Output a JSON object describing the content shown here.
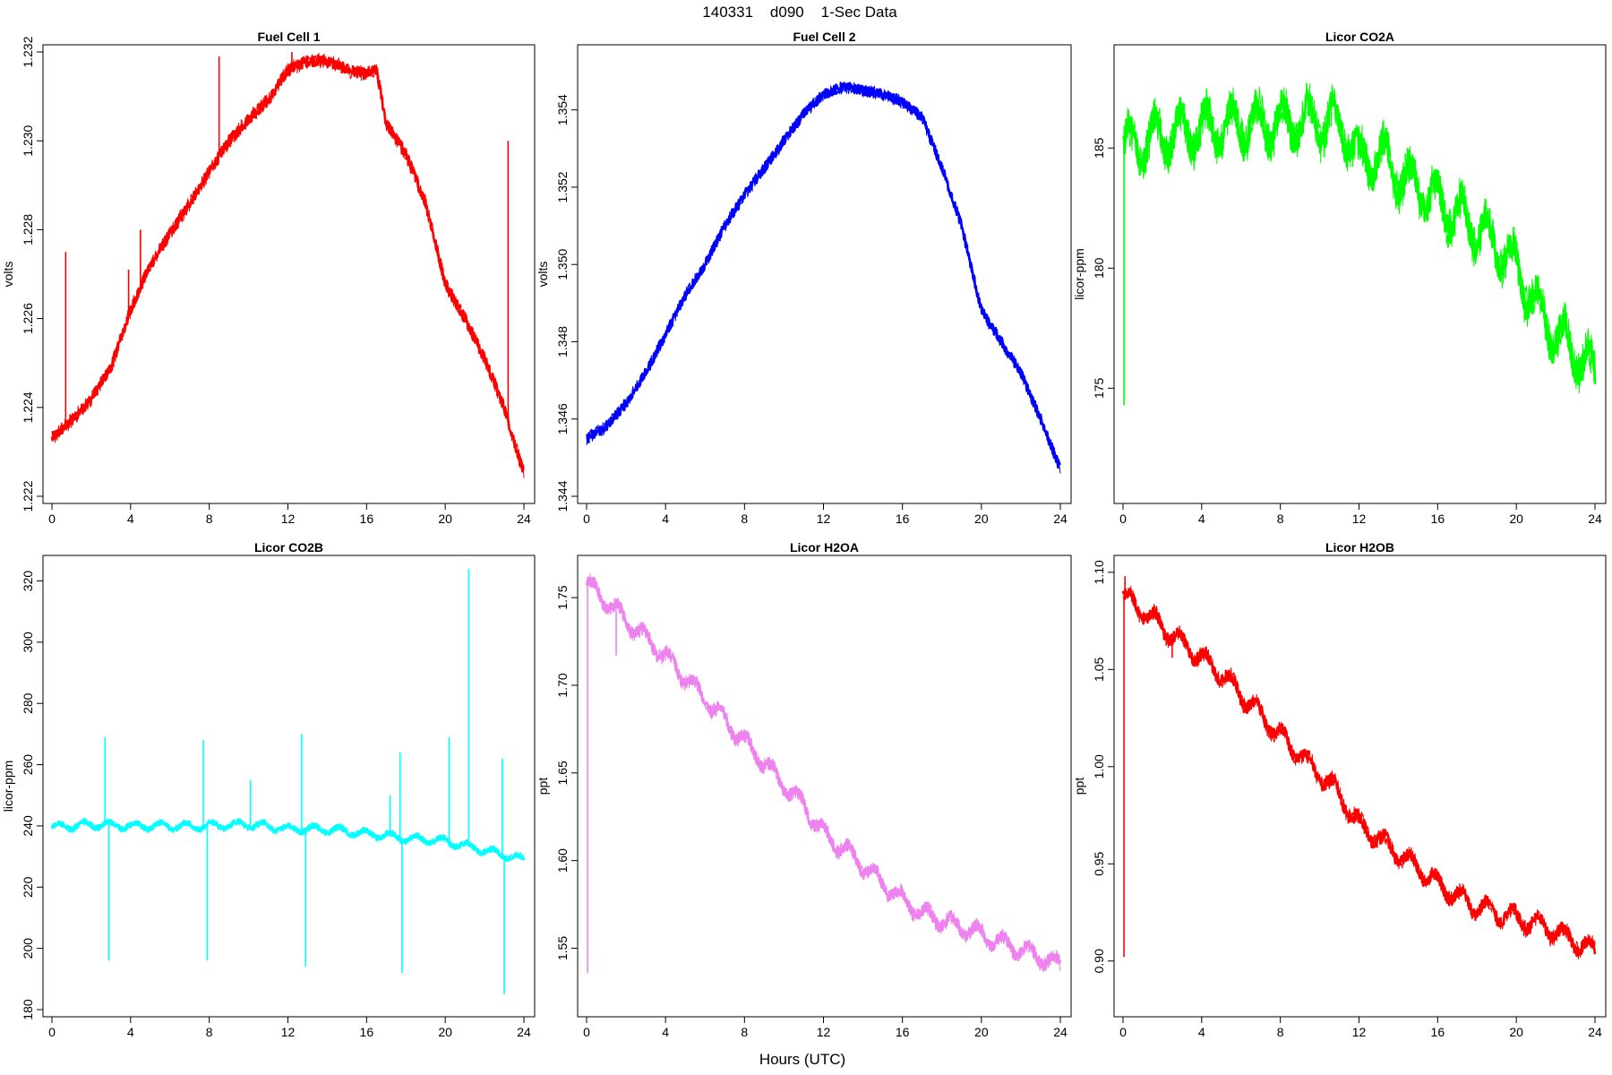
{
  "figure": {
    "title": "140331    d090    1-Sec Data",
    "xlabel": "Hours (UTC)"
  },
  "chart_data": [
    {
      "type": "line",
      "title": "Fuel Cell 1",
      "ylabel": "volts",
      "color": "#ff0000",
      "xlim": [
        0,
        24
      ],
      "ylim": [
        1.222,
        1.232
      ],
      "xticks": [
        0,
        4,
        8,
        12,
        16,
        20,
        24
      ],
      "yticks": [
        "1.222",
        "1.224",
        "1.226",
        "1.228",
        "1.230",
        "1.232"
      ],
      "noise": 0.00012,
      "x": [
        0,
        1,
        2,
        3,
        4,
        5,
        6,
        7,
        8,
        9,
        10,
        11,
        12,
        13,
        14,
        15,
        16,
        16.5,
        17,
        18,
        19,
        20,
        21,
        22,
        23,
        24
      ],
      "y": [
        1.2233,
        1.2237,
        1.2242,
        1.2249,
        1.2262,
        1.2272,
        1.2279,
        1.2286,
        1.2293,
        1.23,
        1.2305,
        1.2309,
        1.2316,
        1.2318,
        1.2318,
        1.2316,
        1.2315,
        1.2316,
        1.2304,
        1.2297,
        1.2286,
        1.2268,
        1.226,
        1.2251,
        1.224,
        1.2225
      ],
      "spikes": [
        {
          "x": 0.7,
          "y": 1.2275
        },
        {
          "x": 3.9,
          "y": 1.2271
        },
        {
          "x": 4.5,
          "y": 1.228
        },
        {
          "x": 8.5,
          "y": 1.2319
        },
        {
          "x": 12.2,
          "y": 1.232
        },
        {
          "x": 23.2,
          "y": 1.23
        }
      ]
    },
    {
      "type": "line",
      "title": "Fuel Cell 2",
      "ylabel": "volts",
      "color": "#0000ff",
      "xlim": [
        0,
        24
      ],
      "ylim": [
        1.344,
        1.3555
      ],
      "xticks": [
        0,
        4,
        8,
        12,
        16,
        20,
        24
      ],
      "yticks": [
        "1.344",
        "1.346",
        "1.348",
        "1.350",
        "1.352",
        "1.354"
      ],
      "noise": 0.00012,
      "x": [
        0,
        1,
        2,
        3,
        4,
        5,
        6,
        7,
        8,
        9,
        10,
        11,
        12,
        13,
        14,
        15,
        16,
        17,
        18,
        19,
        20,
        21,
        22,
        23,
        24
      ],
      "y": [
        1.3455,
        1.3458,
        1.3464,
        1.3472,
        1.3482,
        1.3492,
        1.35,
        1.351,
        1.3518,
        1.3525,
        1.3532,
        1.3539,
        1.3544,
        1.3546,
        1.3545,
        1.3544,
        1.3542,
        1.3538,
        1.3525,
        1.351,
        1.3488,
        1.348,
        1.3472,
        1.346,
        1.3447
      ]
    },
    {
      "type": "line",
      "title": "Licor CO2A",
      "ylabel": "licor-ppm",
      "color": "#00ff00",
      "xlim": [
        0,
        24
      ],
      "ylim": [
        170.5,
        189
      ],
      "xticks": [
        0,
        4,
        8,
        12,
        16,
        20,
        24
      ],
      "yticks": [
        "175",
        "180",
        "185"
      ],
      "noise": 0.6,
      "x": [
        0,
        1,
        2,
        3,
        4,
        5,
        6,
        7,
        8,
        9,
        10,
        11,
        11.5,
        12,
        12.5,
        13,
        14,
        15,
        16,
        17,
        18,
        19,
        20,
        21,
        22,
        23,
        24
      ],
      "y": [
        185.0,
        185.2,
        185.5,
        185.7,
        185.8,
        185.9,
        186.0,
        186.0,
        186.0,
        186.1,
        186.1,
        186.0,
        185.5,
        184.5,
        184.5,
        184.8,
        183.9,
        183.4,
        182.8,
        182.2,
        181.7,
        181.0,
        180.0,
        178.5,
        177.2,
        176.5,
        175.5
      ],
      "spikes": [
        {
          "x": 0.05,
          "y": 174.3
        },
        {
          "x": 0.1,
          "y": 185.9
        }
      ]
    },
    {
      "type": "line",
      "title": "Licor CO2B",
      "ylabel": "licor-ppm",
      "color": "#00ffff",
      "xlim": [
        0,
        24
      ],
      "ylim": [
        180,
        326
      ],
      "xticks": [
        0,
        4,
        8,
        12,
        16,
        20,
        24
      ],
      "yticks": [
        "180",
        "200",
        "220",
        "240",
        "260",
        "280",
        "300",
        "320"
      ],
      "noise": 0.8,
      "x": [
        0,
        2,
        4,
        6,
        8,
        10,
        12,
        14,
        16,
        18,
        20,
        22,
        24
      ],
      "y": [
        239.5,
        240.5,
        240,
        240,
        240,
        240.5,
        239,
        239,
        237.5,
        236,
        235,
        232,
        229
      ],
      "spikes": [
        {
          "x": 2.7,
          "y": 269
        },
        {
          "x": 2.9,
          "y": 196
        },
        {
          "x": 7.7,
          "y": 268
        },
        {
          "x": 7.9,
          "y": 196
        },
        {
          "x": 10.1,
          "y": 255
        },
        {
          "x": 12.7,
          "y": 270
        },
        {
          "x": 12.9,
          "y": 194
        },
        {
          "x": 17.2,
          "y": 250
        },
        {
          "x": 17.7,
          "y": 264
        },
        {
          "x": 17.8,
          "y": 192
        },
        {
          "x": 20.2,
          "y": 269
        },
        {
          "x": 21.2,
          "y": 324
        },
        {
          "x": 22.9,
          "y": 262
        },
        {
          "x": 23.0,
          "y": 185
        }
      ]
    },
    {
      "type": "line",
      "title": "Licor H2OA",
      "ylabel": "ppt",
      "color": "#ee82ee",
      "xlim": [
        0,
        24
      ],
      "ylim": [
        1.515,
        1.77
      ],
      "xticks": [
        0,
        4,
        8,
        12,
        16,
        20,
        24
      ],
      "yticks": [
        "1.55",
        "1.60",
        "1.65",
        "1.70",
        "1.75"
      ],
      "noise": 0.003,
      "x": [
        0,
        1,
        2,
        3,
        4,
        5,
        6,
        7,
        8,
        9,
        10,
        11,
        12,
        13,
        14,
        15,
        16,
        17,
        18,
        19,
        20,
        21,
        22,
        23,
        24
      ],
      "y": [
        1.758,
        1.748,
        1.737,
        1.727,
        1.716,
        1.705,
        1.692,
        1.68,
        1.668,
        1.656,
        1.643,
        1.632,
        1.615,
        1.607,
        1.597,
        1.587,
        1.578,
        1.57,
        1.566,
        1.562,
        1.558,
        1.553,
        1.549,
        1.545,
        1.54
      ],
      "spikes": [
        {
          "x": 0.05,
          "y": 1.536
        },
        {
          "x": 0.1,
          "y": 1.762
        },
        {
          "x": 1.5,
          "y": 1.717
        }
      ]
    },
    {
      "type": "line",
      "title": "Licor H2OB",
      "ylabel": "ppt",
      "color": "#ff0000",
      "xlim": [
        0,
        24
      ],
      "ylim": [
        0.875,
        1.105
      ],
      "xticks": [
        0,
        4,
        8,
        12,
        16,
        20,
        24
      ],
      "yticks": [
        "0.90",
        "0.95",
        "1.00",
        "1.05",
        "1.10"
      ],
      "noise": 0.003,
      "x": [
        0,
        1,
        2,
        3,
        4,
        5,
        6,
        7,
        8,
        9,
        10,
        11,
        12,
        13,
        14,
        15,
        16,
        17,
        18,
        19,
        20,
        21,
        22,
        23,
        24
      ],
      "y": [
        1.088,
        1.08,
        1.072,
        1.064,
        1.056,
        1.048,
        1.037,
        1.027,
        1.016,
        1.006,
        0.996,
        0.986,
        0.97,
        0.963,
        0.955,
        0.948,
        0.94,
        0.933,
        0.928,
        0.925,
        0.922,
        0.919,
        0.915,
        0.91,
        0.905
      ],
      "spikes": [
        {
          "x": 0.05,
          "y": 0.902
        },
        {
          "x": 0.1,
          "y": 1.098
        },
        {
          "x": 2.5,
          "y": 1.056
        }
      ]
    }
  ]
}
